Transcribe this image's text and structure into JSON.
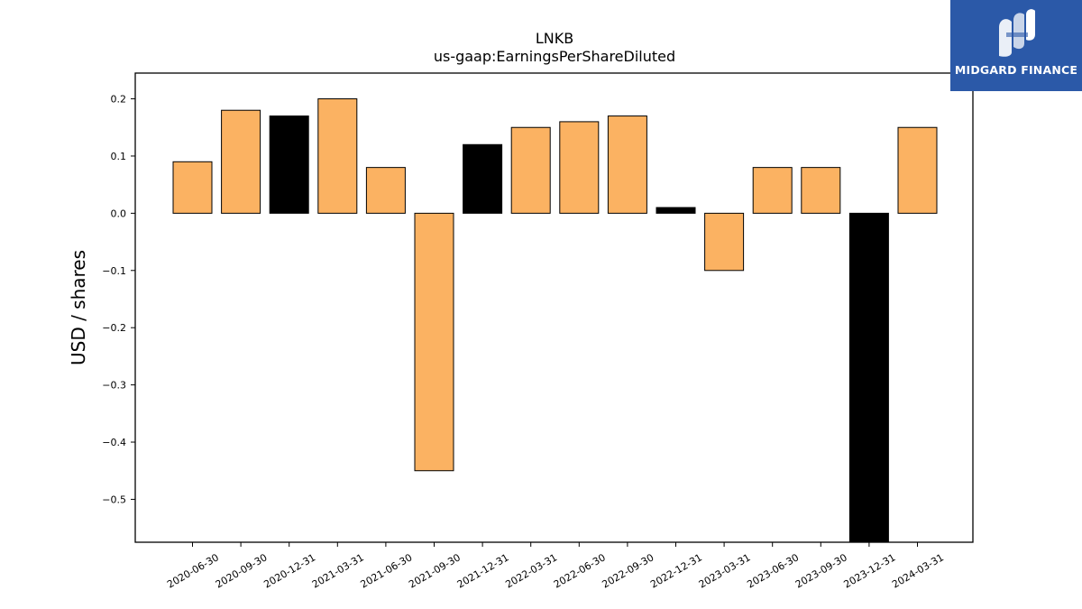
{
  "brand": {
    "name": "MIDGARD FINANCE",
    "background": "#2b59a8"
  },
  "chart_data": {
    "type": "bar",
    "title": "LNKB",
    "subtitle": "us-gaap:EarningsPerShareDiluted",
    "xlabel": "",
    "ylabel": "USD / shares",
    "categories": [
      "2020-06-30",
      "2020-09-30",
      "2020-12-31",
      "2021-03-31",
      "2021-06-30",
      "2021-09-30",
      "2021-12-31",
      "2022-03-31",
      "2022-06-30",
      "2022-09-30",
      "2022-12-31",
      "2023-03-31",
      "2023-06-30",
      "2023-09-30",
      "2023-12-31",
      "2024-03-31"
    ],
    "values": [
      0.09,
      0.18,
      0.17,
      0.2,
      0.08,
      -0.45,
      0.12,
      0.15,
      0.16,
      0.17,
      0.01,
      -0.1,
      0.08,
      0.08,
      -0.58,
      0.15
    ],
    "highlight": [
      false,
      false,
      true,
      false,
      false,
      false,
      true,
      false,
      false,
      false,
      true,
      false,
      false,
      false,
      true,
      false
    ],
    "colors": {
      "default": "#fbb262",
      "highlight": "#000000",
      "edge": "#000000"
    },
    "ylim": [
      -0.575,
      0.245
    ],
    "yticks": [
      0.2,
      0.1,
      0.0,
      -0.1,
      -0.2,
      -0.3,
      -0.4,
      -0.5
    ],
    "ytick_labels": [
      "0.2",
      "0.1",
      "0.0",
      "−0.1",
      "−0.2",
      "−0.3",
      "−0.4",
      "−0.5"
    ],
    "grid": false,
    "legend": "none"
  }
}
